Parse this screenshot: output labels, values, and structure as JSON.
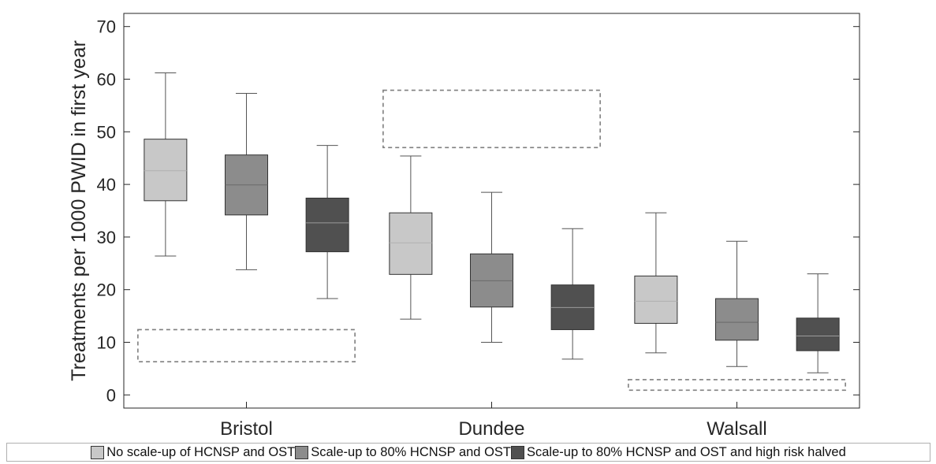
{
  "chart_data": {
    "type": "box",
    "ylabel": "Treatments per 1000 PWID in first year",
    "xlabel": "",
    "ylim": [
      -2.5,
      72.5
    ],
    "yticks": [
      0,
      10,
      20,
      30,
      40,
      50,
      60,
      70
    ],
    "grid": false,
    "legend_position": "bottom",
    "categories": [
      "Bristol",
      "Dundee",
      "Walsall"
    ],
    "series": [
      {
        "name": "No scale-up of HCNSP and OST",
        "color": "#c8c8c8",
        "boxes": [
          {
            "whisker_low": 26.4,
            "q1": 36.9,
            "median": 42.6,
            "q3": 48.6,
            "whisker_high": 61.2
          },
          {
            "whisker_low": 14.4,
            "q1": 22.9,
            "median": 28.9,
            "q3": 34.6,
            "whisker_high": 45.4
          },
          {
            "whisker_low": 8.0,
            "q1": 13.6,
            "median": 17.8,
            "q3": 22.6,
            "whisker_high": 34.6
          }
        ]
      },
      {
        "name": "Scale-up to 80% HCNSP and OST",
        "color": "#8c8c8c",
        "boxes": [
          {
            "whisker_low": 23.8,
            "q1": 34.2,
            "median": 39.9,
            "q3": 45.6,
            "whisker_high": 57.3
          },
          {
            "whisker_low": 10.0,
            "q1": 16.7,
            "median": 21.7,
            "q3": 26.8,
            "whisker_high": 38.5
          },
          {
            "whisker_low": 5.4,
            "q1": 10.4,
            "median": 13.8,
            "q3": 18.3,
            "whisker_high": 29.2
          }
        ]
      },
      {
        "name": "Scale-up to 80% HCNSP and OST and high risk halved",
        "color": "#505050",
        "boxes": [
          {
            "whisker_low": 18.3,
            "q1": 27.2,
            "median": 32.7,
            "q3": 37.4,
            "whisker_high": 47.4
          },
          {
            "whisker_low": 6.8,
            "q1": 12.4,
            "median": 16.6,
            "q3": 20.9,
            "whisker_high": 31.6
          },
          {
            "whisker_low": 4.2,
            "q1": 8.4,
            "median": 11.2,
            "q3": 14.6,
            "whisker_high": 23.0
          }
        ]
      }
    ],
    "annotation_ranges": [
      {
        "category": "Bristol",
        "low": 6.3,
        "high": 12.4
      },
      {
        "category": "Dundee",
        "low": 47.0,
        "high": 57.9
      },
      {
        "category": "Walsall",
        "low": 0.9,
        "high": 2.9
      }
    ]
  }
}
